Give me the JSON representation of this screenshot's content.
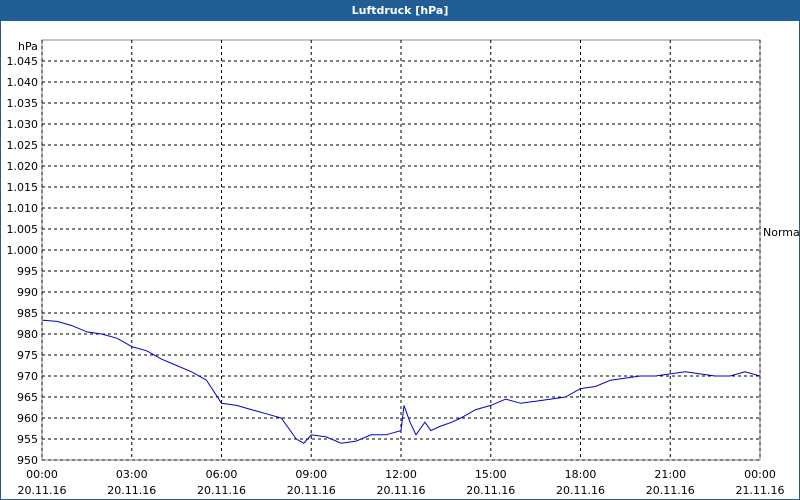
{
  "chart_data": {
    "type": "line",
    "title": "Luftdruck [hPa]",
    "y_label": "hPa",
    "annotation": "Normal",
    "color": "#0000cc",
    "grid": true,
    "x": [
      0,
      0.5,
      1,
      1.5,
      2,
      2.5,
      3,
      3.5,
      4,
      4.5,
      5,
      5.5,
      6,
      6.5,
      7,
      7.5,
      8,
      8.5,
      8.75,
      9,
      9.5,
      10,
      10.5,
      11,
      11.5,
      12,
      12.1,
      12.3,
      12.5,
      12.8,
      13,
      13.3,
      13.7,
      14,
      14.5,
      15,
      15.5,
      16,
      16.5,
      17,
      17.5,
      18,
      18.5,
      19,
      19.5,
      20,
      20.5,
      21,
      21.5,
      22,
      22.5,
      23,
      23.5,
      24
    ],
    "values": [
      983.3,
      983,
      982,
      980.5,
      980,
      979,
      977,
      976,
      974,
      972.5,
      971,
      969,
      963.5,
      963,
      962,
      961,
      960,
      955,
      954,
      956,
      955.5,
      954,
      954.5,
      956,
      956,
      957,
      963,
      959,
      956,
      959,
      957,
      958,
      959,
      960,
      962,
      963,
      964.5,
      963.5,
      964,
      964.5,
      965,
      967,
      967.5,
      969,
      969.5,
      970,
      970,
      970.5,
      971,
      970.5,
      970,
      970,
      971,
      970
    ],
    "xlim": [
      0,
      24
    ],
    "xticks": [
      {
        "value": 0,
        "label": "00:00",
        "date": "20.11.16"
      },
      {
        "value": 3,
        "label": "03:00",
        "date": "20.11.16"
      },
      {
        "value": 6,
        "label": "06:00",
        "date": "20.11.16"
      },
      {
        "value": 9,
        "label": "09:00",
        "date": "20.11.16"
      },
      {
        "value": 12,
        "label": "12:00",
        "date": "20.11.16"
      },
      {
        "value": 15,
        "label": "15:00",
        "date": "20.11.16"
      },
      {
        "value": 18,
        "label": "18:00",
        "date": "20.11.16"
      },
      {
        "value": 21,
        "label": "21:00",
        "date": "20.11.16"
      },
      {
        "value": 24,
        "label": "00:00",
        "date": "21.11.16"
      }
    ],
    "ylim": [
      950,
      1050
    ],
    "yticks": [
      950,
      955,
      960,
      965,
      970,
      975,
      980,
      985,
      990,
      995,
      {
        "value": 1000,
        "label": "1.000"
      },
      {
        "value": 1005,
        "label": "1.005"
      },
      {
        "value": 1010,
        "label": "1.010"
      },
      {
        "value": 1015,
        "label": "1.015"
      },
      {
        "value": 1020,
        "label": "1.020"
      },
      {
        "value": 1025,
        "label": "1.025"
      },
      {
        "value": 1030,
        "label": "1.030"
      },
      {
        "value": 1035,
        "label": "1.035"
      },
      {
        "value": 1040,
        "label": "1.040"
      },
      {
        "value": 1045,
        "label": "1.045"
      }
    ]
  }
}
